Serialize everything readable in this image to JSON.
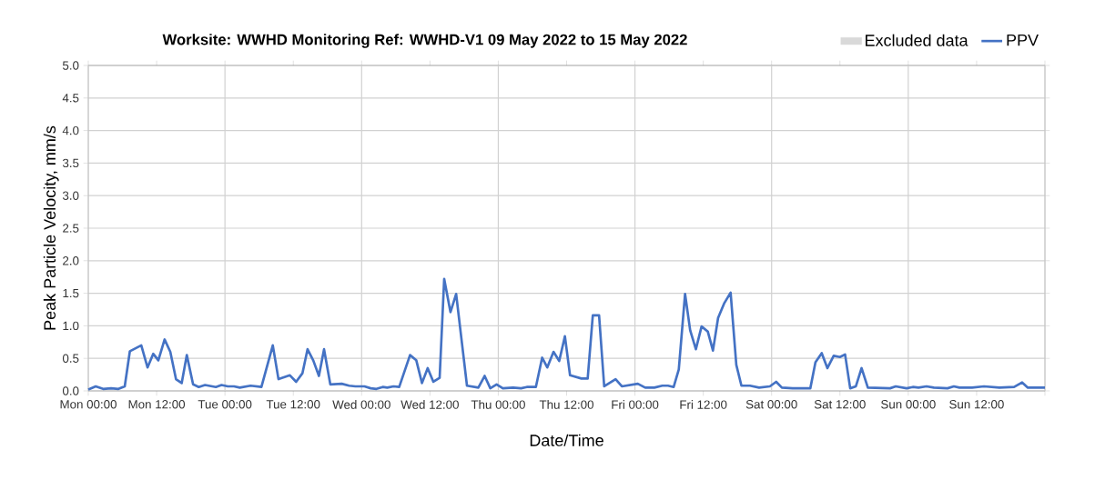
{
  "chart_data": {
    "type": "line",
    "title": "Worksite: WWHD    Monitoring Ref: WWHD-V1      09 May 2022 to 15 May 2022",
    "xlabel": "Date/Time",
    "ylabel": "Peak Particle Velocity, mm/s",
    "xlim": [
      "2022-05-09T00:00",
      "2022-05-16T00:00"
    ],
    "ylim": [
      0,
      5
    ],
    "xticks": [
      {
        "value": "2022-05-09T00:00",
        "label": "Mon 00:00"
      },
      {
        "value": "2022-05-09T12:00",
        "label": "Mon 12:00"
      },
      {
        "value": "2022-05-10T00:00",
        "label": "Tue 00:00"
      },
      {
        "value": "2022-05-10T12:00",
        "label": "Tue 12:00"
      },
      {
        "value": "2022-05-11T00:00",
        "label": "Wed 00:00"
      },
      {
        "value": "2022-05-11T12:00",
        "label": "Wed 12:00"
      },
      {
        "value": "2022-05-12T00:00",
        "label": "Thu 00:00"
      },
      {
        "value": "2022-05-12T12:00",
        "label": "Thu 12:00"
      },
      {
        "value": "2022-05-13T00:00",
        "label": "Fri 00:00"
      },
      {
        "value": "2022-05-13T12:00",
        "label": "Fri 12:00"
      },
      {
        "value": "2022-05-14T00:00",
        "label": "Sat 00:00"
      },
      {
        "value": "2022-05-14T12:00",
        "label": "Sat 12:00"
      },
      {
        "value": "2022-05-15T00:00",
        "label": "Sun 00:00"
      },
      {
        "value": "2022-05-15T12:00",
        "label": "Sun 12:00"
      },
      {
        "value": "2022-05-16T00:00",
        "label": null
      }
    ],
    "yticks": [
      {
        "value": 0,
        "label": "0.0"
      },
      {
        "value": 0.5,
        "label": "0.5"
      },
      {
        "value": 1,
        "label": "1.0"
      },
      {
        "value": 1.5,
        "label": "1.5"
      },
      {
        "value": 2,
        "label": "2.0"
      },
      {
        "value": 2.5,
        "label": "2.5"
      },
      {
        "value": 3,
        "label": "3.0"
      },
      {
        "value": 3.5,
        "label": "3.5"
      },
      {
        "value": 4,
        "label": "4.0"
      },
      {
        "value": 4.5,
        "label": "4.5"
      },
      {
        "value": 5,
        "label": "5.0"
      }
    ],
    "grid": true,
    "legend": "top right",
    "marker": "none",
    "line_style": "solid",
    "series": [
      {
        "name": "Excluded data",
        "type": "area",
        "color": "#d9d9d9"
      },
      {
        "name": "PPV",
        "color": "#4472c4",
        "x": [
          "2022-05-09T00:00",
          "2022-05-09T01:18",
          "2022-05-09T02:36",
          "2022-05-09T04:00",
          "2022-05-09T05:18",
          "2022-05-09T06:24",
          "2022-05-09T07:18",
          "2022-05-09T09:18",
          "2022-05-09T10:24",
          "2022-05-09T11:24",
          "2022-05-09T12:18",
          "2022-05-09T13:24",
          "2022-05-09T14:24",
          "2022-05-09T15:24",
          "2022-05-09T16:24",
          "2022-05-09T17:18",
          "2022-05-09T18:24",
          "2022-05-09T19:24",
          "2022-05-09T20:30",
          "2022-05-09T22:24",
          "2022-05-09T23:24",
          "2022-05-10T00:30",
          "2022-05-10T01:36",
          "2022-05-10T02:36",
          "2022-05-10T04:30",
          "2022-05-10T06:24",
          "2022-05-10T08:24",
          "2022-05-10T09:24",
          "2022-05-10T11:24",
          "2022-05-10T12:30",
          "2022-05-10T13:36",
          "2022-05-10T14:30",
          "2022-05-10T15:30",
          "2022-05-10T16:30",
          "2022-05-10T17:24",
          "2022-05-10T18:30",
          "2022-05-10T20:30",
          "2022-05-10T21:48",
          "2022-05-10T22:54",
          "2022-05-11T00:30",
          "2022-05-11T01:36",
          "2022-05-11T02:36",
          "2022-05-11T03:42",
          "2022-05-11T04:30",
          "2022-05-11T05:36",
          "2022-05-11T06:36",
          "2022-05-11T08:30",
          "2022-05-11T09:36",
          "2022-05-11T10:36",
          "2022-05-11T11:36",
          "2022-05-11T12:36",
          "2022-05-11T13:42",
          "2022-05-11T14:30",
          "2022-05-11T15:36",
          "2022-05-11T16:36",
          "2022-05-11T18:30",
          "2022-05-11T20:30",
          "2022-05-11T21:36",
          "2022-05-11T22:36",
          "2022-05-11T23:42",
          "2022-05-12T00:48",
          "2022-05-12T02:36",
          "2022-05-12T04:00",
          "2022-05-12T05:00",
          "2022-05-12T06:36",
          "2022-05-12T07:42",
          "2022-05-12T08:36",
          "2022-05-12T09:42",
          "2022-05-12T10:42",
          "2022-05-12T11:42",
          "2022-05-12T12:36",
          "2022-05-12T14:36",
          "2022-05-12T15:42",
          "2022-05-12T16:36",
          "2022-05-12T17:42",
          "2022-05-12T18:36",
          "2022-05-12T20:36",
          "2022-05-12T21:42",
          "2022-05-13T00:30",
          "2022-05-13T01:48",
          "2022-05-13T03:24",
          "2022-05-13T04:48",
          "2022-05-13T05:48",
          "2022-05-13T06:48",
          "2022-05-13T07:42",
          "2022-05-13T08:48",
          "2022-05-13T09:42",
          "2022-05-13T10:42",
          "2022-05-13T11:42",
          "2022-05-13T12:48",
          "2022-05-13T13:42",
          "2022-05-13T14:36",
          "2022-05-13T15:42",
          "2022-05-13T16:48",
          "2022-05-13T17:48",
          "2022-05-13T18:42",
          "2022-05-13T20:12",
          "2022-05-13T21:48",
          "2022-05-13T23:42",
          "2022-05-14T00:48",
          "2022-05-14T01:48",
          "2022-05-14T03:42",
          "2022-05-14T06:48",
          "2022-05-14T07:42",
          "2022-05-14T08:48",
          "2022-05-14T09:48",
          "2022-05-14T10:54",
          "2022-05-14T12:00",
          "2022-05-14T12:54",
          "2022-05-14T13:48",
          "2022-05-14T14:48",
          "2022-05-14T15:48",
          "2022-05-14T16:54",
          "2022-05-14T20:48",
          "2022-05-14T21:48",
          "2022-05-14T23:42",
          "2022-05-15T00:48",
          "2022-05-15T01:48",
          "2022-05-15T03:12",
          "2022-05-15T04:30",
          "2022-05-15T06:54",
          "2022-05-15T08:00",
          "2022-05-15T09:00",
          "2022-05-15T11:12",
          "2022-05-15T13:18",
          "2022-05-15T16:00",
          "2022-05-15T18:36",
          "2022-05-15T20:00",
          "2022-05-15T21:00",
          "2022-05-16T00:00"
        ],
        "values": [
          0.02,
          0.07,
          0.03,
          0.04,
          0.03,
          0.07,
          0.61,
          0.7,
          0.36,
          0.57,
          0.47,
          0.79,
          0.6,
          0.18,
          0.12,
          0.55,
          0.1,
          0.06,
          0.09,
          0.06,
          0.09,
          0.07,
          0.07,
          0.05,
          0.08,
          0.06,
          0.7,
          0.18,
          0.24,
          0.14,
          0.27,
          0.64,
          0.47,
          0.23,
          0.64,
          0.1,
          0.11,
          0.08,
          0.07,
          0.07,
          0.04,
          0.03,
          0.06,
          0.05,
          0.07,
          0.06,
          0.55,
          0.47,
          0.12,
          0.35,
          0.14,
          0.2,
          1.72,
          1.21,
          1.49,
          0.08,
          0.05,
          0.23,
          0.04,
          0.1,
          0.04,
          0.05,
          0.04,
          0.06,
          0.06,
          0.51,
          0.36,
          0.6,
          0.46,
          0.84,
          0.24,
          0.19,
          0.19,
          1.16,
          1.16,
          0.07,
          0.18,
          0.07,
          0.11,
          0.05,
          0.05,
          0.08,
          0.08,
          0.06,
          0.33,
          1.49,
          0.93,
          0.64,
          0.99,
          0.91,
          0.62,
          1.12,
          1.35,
          1.51,
          0.4,
          0.08,
          0.08,
          0.05,
          0.07,
          0.14,
          0.05,
          0.04,
          0.04,
          0.44,
          0.58,
          0.35,
          0.54,
          0.52,
          0.56,
          0.04,
          0.07,
          0.35,
          0.05,
          0.04,
          0.07,
          0.04,
          0.06,
          0.05,
          0.07,
          0.05,
          0.04,
          0.07,
          0.05,
          0.05,
          0.07,
          0.05,
          0.06,
          0.13,
          0.05,
          0.05
        ]
      }
    ]
  }
}
